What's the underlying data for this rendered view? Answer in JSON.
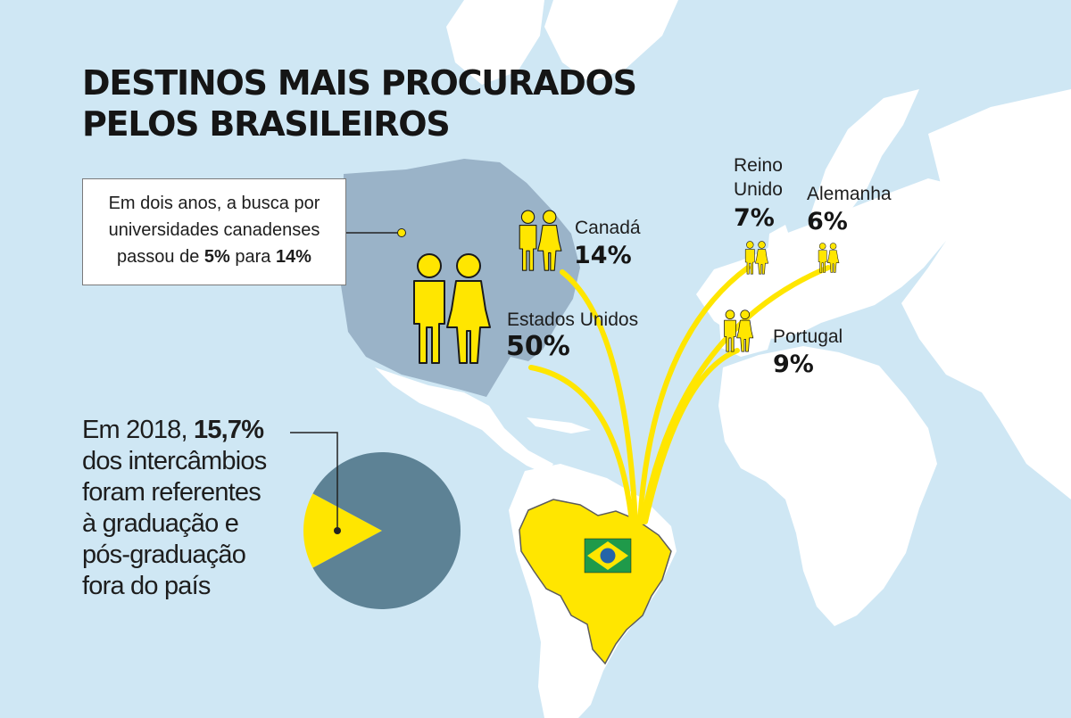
{
  "title": {
    "line1": "DESTINOS MAIS PROCURADOS",
    "line2": "PELOS BRASILEIROS"
  },
  "note": {
    "line1": "Em dois anos, a busca por",
    "line2": "universidades canadenses",
    "line3_prefix": "passou de ",
    "from_value": "5%",
    "mid": " para ",
    "to_value": "14%"
  },
  "destinations": {
    "canada": {
      "name": "Canadá",
      "value": "14%"
    },
    "eua": {
      "name": "Estados Unidos",
      "value": "50%"
    },
    "reino_unido": {
      "name_line1": "Reino",
      "name_line2": "Unido",
      "value": "7%"
    },
    "alemanha": {
      "name": "Alemanha",
      "value": "6%"
    },
    "portugal": {
      "name": "Portugal",
      "value": "9%"
    }
  },
  "stat": {
    "prefix": "Em 2018, ",
    "value": "15,7%",
    "line2": "dos intercâmbios",
    "line3": "foram referentes",
    "line4": "à graduação e",
    "line5": "pós-graduação",
    "line6": "fora do país"
  },
  "chart_data": {
    "type": "pie",
    "slices": [
      {
        "label": "graduação e pós-graduação",
        "value": 15.7,
        "color": "#ffe600"
      },
      {
        "label": "",
        "value": 84.3,
        "color": "#5d8295"
      }
    ]
  },
  "colors": {
    "ocean": "#cfe7f4",
    "land": "#ffffff",
    "north_america": "#9ab3c8",
    "highlight": "#ffe600",
    "pie_main": "#5d8295",
    "text": "#151515",
    "flag_green": "#1f9a4a",
    "flag_blue": "#2565a8"
  },
  "icons": [
    "person-pair-icon",
    "brazil-flag-icon",
    "pie-chart-icon"
  ]
}
